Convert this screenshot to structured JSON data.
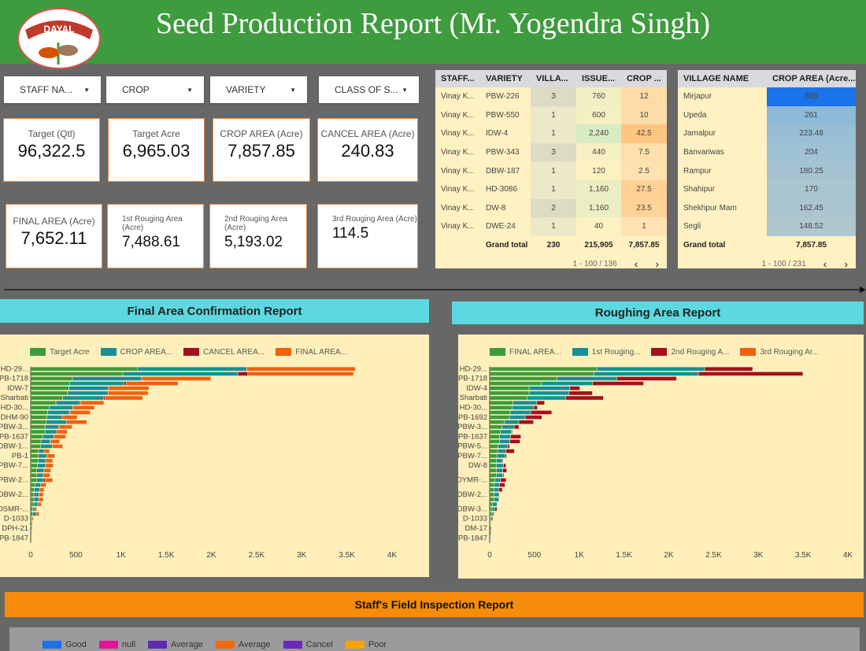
{
  "header": {
    "title": "Seed Production Report (Mr. Yogendra Singh)",
    "logo_text": "DAYAL",
    "color": "#3e9b3e"
  },
  "filters": [
    {
      "label": "STAFF NA..."
    },
    {
      "label": "CROP"
    },
    {
      "label": "VARIETY"
    },
    {
      "label": "CLASS OF S..."
    }
  ],
  "kpis": [
    {
      "label": "Target (Qtl)",
      "value": "96,322.5"
    },
    {
      "label": "Target Acre",
      "value": "6,965.03"
    },
    {
      "label": "CROP AREA (Acre)",
      "value": "7,857.85"
    },
    {
      "label": "CANCEL AREA (Acre)",
      "value": "240.83"
    },
    {
      "label": "FINAL AREA (Acre)",
      "value": "7,652.11"
    },
    {
      "label": "1st Rouging Area (Acre)",
      "value": "7,488.61"
    },
    {
      "label": "2nd Rouging Area (Acre)",
      "value": "5,193.02"
    },
    {
      "label": "3rd Rouging Area (Acre)",
      "value": "114.5"
    }
  ],
  "staff_table": {
    "headers": [
      "STAFF...",
      "VARIETY",
      "VILLA...",
      "ISSUE...",
      "CROP ..."
    ],
    "rows": [
      [
        "Vinay K...",
        "PBW-226",
        "3",
        "760",
        "12"
      ],
      [
        "Vinay K...",
        "PBW-550",
        "1",
        "600",
        "10"
      ],
      [
        "Vinay K...",
        "IDW-4",
        "1",
        "2,240",
        "42.5"
      ],
      [
        "Vinay K...",
        "PBW-343",
        "3",
        "440",
        "7.5"
      ],
      [
        "Vinay K...",
        "DBW-187",
        "1",
        "120",
        "2.5"
      ],
      [
        "Vinay K...",
        "HD-3086",
        "1",
        "1,160",
        "27.5"
      ],
      [
        "Vinay K...",
        "DW-8",
        "2",
        "1,160",
        "23.5"
      ],
      [
        "Vinay K...",
        "DWE-24",
        "1",
        "40",
        "1"
      ]
    ],
    "total": [
      "",
      "Grand total",
      "230",
      "215,905",
      "7,857.85"
    ],
    "pagination": "1 - 100 / 136"
  },
  "village_table": {
    "headers": [
      "VILLAGE NAME",
      "CROP AREA (Acre..."
    ],
    "rows": [
      [
        "Mirjapur",
        "585"
      ],
      [
        "Upeda",
        "261"
      ],
      [
        "Jamalpur",
        "223.48"
      ],
      [
        "Banvariwas",
        "204"
      ],
      [
        "Rampur",
        "180.25"
      ],
      [
        "Shahipur",
        "170"
      ],
      [
        "Shekhpur Mam",
        "162.45"
      ],
      [
        "Segli",
        "148.52"
      ]
    ],
    "total": [
      "Grand total",
      "7,857.85"
    ],
    "pagination": "1 - 100 / 231"
  },
  "sections": {
    "final": "Final Area Confirmation Report",
    "roughing": "Roughing Area Report",
    "inspection": "Staff's Field Inspection Report"
  },
  "chart_data": [
    {
      "type": "bar",
      "orientation": "horizontal",
      "stacked": true,
      "xlim": [
        0,
        4000
      ],
      "xticks": [
        "0",
        "500",
        "1K",
        "1.5K",
        "2K",
        "2.5K",
        "3K",
        "3.5K",
        "4K"
      ],
      "legend": "top",
      "categories": [
        "HD-29...",
        "",
        "PB-1718",
        "",
        "IDW-7",
        "",
        "Sharbati",
        "",
        "HD-30...",
        "",
        "DHM-90",
        "",
        "PBW-3...",
        "",
        "PB-1637",
        "",
        "DBW-1...",
        "",
        "PB-1",
        "",
        "PBW-7...",
        "",
        "",
        "PBW-2...",
        "",
        "",
        "DBW-2...",
        "",
        "",
        "DSMR-...",
        "",
        "D-1033",
        "",
        "DPH-21",
        "",
        "PB-1847"
      ],
      "series": [
        {
          "name": "Target Acre",
          "color": "#3a9c3a",
          "values": [
            1184,
            1022,
            464,
            435,
            424,
            409,
            357,
            282,
            206,
            192,
            183,
            174,
            165,
            160,
            134,
            116,
            110,
            90,
            84,
            84,
            78,
            67,
            67,
            67,
            49,
            41,
            38,
            38,
            38,
            23,
            23,
            6,
            6,
            3,
            1,
            1
          ]
        },
        {
          "name": "CROP AREA...",
          "color": "#168f9a",
          "values": [
            1208,
            1274,
            763,
            601,
            438,
            450,
            450,
            261,
            261,
            238,
            168,
            226,
            148,
            125,
            125,
            102,
            131,
            61,
            96,
            84,
            87,
            84,
            75,
            75,
            64,
            58,
            55,
            55,
            44,
            23,
            41,
            9,
            6,
            6,
            2,
            1
          ]
        },
        {
          "name": "CANCEL AREA...",
          "color": "#a50f1e",
          "values": [
            0,
            110,
            12,
            23,
            0,
            0,
            17,
            12,
            0,
            9,
            0,
            0,
            9,
            15,
            0,
            9,
            0,
            0,
            0,
            0,
            0,
            0,
            0,
            20,
            0,
            0,
            0,
            0,
            0,
            6,
            0,
            0,
            0,
            0,
            0,
            0
          ]
        },
        {
          "name": "FINAL AREA...",
          "color": "#f06010",
          "values": [
            1205,
            1170,
            758,
            575,
            450,
            444,
            418,
            258,
            241,
            224,
            168,
            224,
            139,
            107,
            131,
            96,
            116,
            61,
            90,
            78,
            87,
            75,
            75,
            84,
            61,
            52,
            49,
            49,
            38,
            17,
            32,
            15,
            3,
            6,
            3,
            2
          ]
        }
      ]
    },
    {
      "type": "bar",
      "orientation": "horizontal",
      "stacked": true,
      "xlim": [
        0,
        4000
      ],
      "xticks": [
        "0",
        "500",
        "1K",
        "1.5K",
        "2K",
        "2.5K",
        "3K",
        "3.5K",
        "4K"
      ],
      "legend": "top",
      "categories": [
        "HD-29...",
        "",
        "PB-1718",
        "",
        "IDW-4",
        "",
        "Sharbati",
        "",
        "HD-30...",
        "",
        "PB-1692",
        "",
        "PBW-3...",
        "",
        "PB-1637",
        "",
        "PBW-5...",
        "",
        "PBW-7...",
        "",
        "DW-8",
        "",
        "",
        "DYMR-...",
        "",
        "",
        "DBW-2...",
        "",
        "",
        "DBW-3...",
        "",
        "D-1033",
        "",
        "DM-17",
        "",
        "PB-1847"
      ],
      "series": [
        {
          "name": "FINAL AREA...",
          "color": "#3a9c3a",
          "values": [
            1200,
            1165,
            751,
            581,
            443,
            443,
            423,
            264,
            252,
            232,
            223,
            164,
            141,
            120,
            114,
            114,
            97,
            91,
            82,
            76,
            76,
            76,
            76,
            59,
            53,
            53,
            50,
            50,
            35,
            29,
            21,
            12,
            6,
            3,
            3,
            1
          ]
        },
        {
          "name": "1st Rouging...",
          "color": "#168f9a",
          "values": [
            1203,
            1168,
            669,
            569,
            455,
            446,
            426,
            264,
            244,
            229,
            176,
            164,
            135,
            126,
            120,
            114,
            106,
            94,
            91,
            68,
            82,
            73,
            73,
            65,
            59,
            50,
            59,
            56,
            50,
            32,
            18,
            18,
            6,
            3,
            3,
            1
          ]
        },
        {
          "name": "2nd Rouging A...",
          "color": "#a50f1e",
          "values": [
            537,
            1168,
            669,
            572,
            112,
            261,
            423,
            88,
            41,
            235,
            188,
            164,
            53,
            9,
            117,
            114,
            21,
            94,
            18,
            9,
            26,
            44,
            12,
            62,
            62,
            41,
            0,
            0,
            0,
            23,
            12,
            9,
            0,
            12,
            6,
            0
          ]
        },
        {
          "name": "3rd Rouging Ar...",
          "color": "#f06010",
          "values": [
            0,
            0,
            0,
            0,
            0,
            0,
            0,
            0,
            0,
            0,
            0,
            0,
            0,
            0,
            0,
            0,
            0,
            0,
            0,
            0,
            0,
            0,
            0,
            0,
            0,
            0,
            0,
            0,
            0,
            0,
            0,
            0,
            0,
            0,
            0,
            0
          ]
        }
      ]
    }
  ],
  "inspection_legend": [
    {
      "name": "Good",
      "color": "#1a73e8"
    },
    {
      "name": "null",
      "color": "#e8119a"
    },
    {
      "name": "Average",
      "color": "#5e2ab0"
    },
    {
      "name": "Average",
      "color": "#ef6a10"
    },
    {
      "name": "Cancel",
      "color": "#6a2ab8"
    },
    {
      "name": "Poor",
      "color": "#f5a500"
    }
  ]
}
